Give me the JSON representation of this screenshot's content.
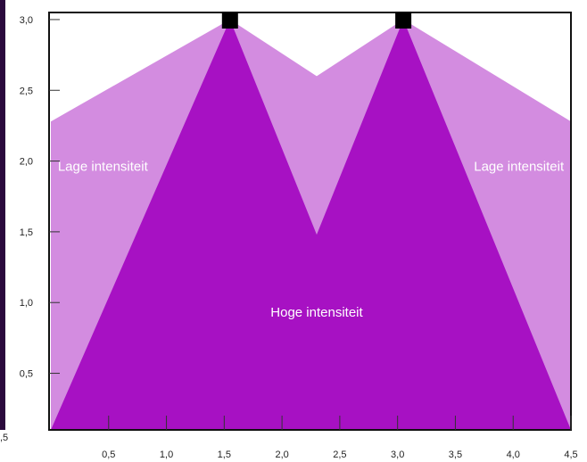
{
  "chart_data": {
    "type": "area",
    "title": "",
    "xlabel": "",
    "ylabel": "",
    "xlim": [
      0,
      4.5
    ],
    "ylim": [
      0.1,
      3.05
    ],
    "x_ticks": [
      {
        "value": 0.5,
        "label": "0,5"
      },
      {
        "value": 1.0,
        "label": "1,0"
      },
      {
        "value": 1.5,
        "label": "1,5"
      },
      {
        "value": 2.0,
        "label": "2,0"
      },
      {
        "value": 2.5,
        "label": "2,5"
      },
      {
        "value": 3.0,
        "label": "3,0"
      },
      {
        "value": 3.5,
        "label": "3,5"
      },
      {
        "value": 4.0,
        "label": "4,0"
      },
      {
        "value": 4.5,
        "label": "4,5"
      }
    ],
    "x_cut_label": ",5",
    "y_ticks": [
      {
        "value": 0.5,
        "label": "0,5"
      },
      {
        "value": 1.0,
        "label": "1,0"
      },
      {
        "value": 1.5,
        "label": "1,5"
      },
      {
        "value": 2.0,
        "label": "2,0"
      },
      {
        "value": 2.5,
        "label": "2,5"
      },
      {
        "value": 3.0,
        "label": "3,0"
      }
    ],
    "light_sources": [
      {
        "x": 1.55,
        "y": 3.0
      },
      {
        "x": 3.05,
        "y": 3.0
      }
    ],
    "regions": [
      {
        "name": "Lage intensiteit",
        "color": "#d38ce0",
        "points": [
          [
            0,
            0.1
          ],
          [
            0,
            2.28
          ],
          [
            1.55,
            3.0
          ],
          [
            2.3,
            2.6
          ],
          [
            3.05,
            3.0
          ],
          [
            4.5,
            2.28
          ],
          [
            4.5,
            0.1
          ]
        ]
      },
      {
        "name": "Hoge intensiteit",
        "color": "#a711c3",
        "points": [
          [
            0,
            0.1
          ],
          [
            1.55,
            3.0
          ],
          [
            2.3,
            1.48
          ],
          [
            3.05,
            3.0
          ],
          [
            4.5,
            0.1
          ]
        ]
      }
    ],
    "annotations": [
      {
        "text": "Lage intensiteit",
        "x": 0.45,
        "y": 1.93
      },
      {
        "text": "Lage intensiteit",
        "x": 4.05,
        "y": 1.93
      },
      {
        "text": "Hoge intensiteit",
        "x": 2.3,
        "y": 0.9
      }
    ]
  },
  "colors": {
    "frame": "#111111",
    "light_source": "#000000",
    "side_bar": "#2b0a3d"
  }
}
